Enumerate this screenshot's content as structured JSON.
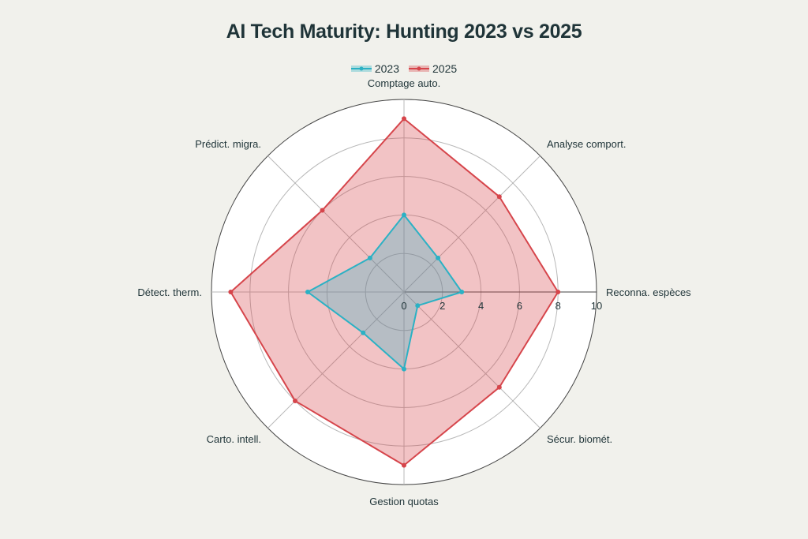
{
  "chart_data": {
    "type": "radar",
    "title": "AI Tech Maturity: Hunting 2023 vs 2025",
    "axes": [
      "Reconna. espèces",
      "Analyse comport.",
      "Comptage auto.",
      "Prédict. migra.",
      "Détect. therm.",
      "Carto. intell.",
      "Gestion quotas",
      "Sécur. biomét."
    ],
    "series": [
      {
        "name": "2023",
        "values": [
          3,
          2.5,
          4,
          2.5,
          5,
          3,
          4,
          1
        ],
        "color": "#2bb1c4"
      },
      {
        "name": "2025",
        "values": [
          8,
          7,
          9,
          6,
          9,
          8,
          9,
          7
        ],
        "color": "#d6454b"
      }
    ],
    "rlim": [
      0,
      10
    ],
    "ticks": [
      "0",
      "2",
      "4",
      "6",
      "8",
      "10"
    ],
    "legend_position": "top-center",
    "grid": true
  }
}
